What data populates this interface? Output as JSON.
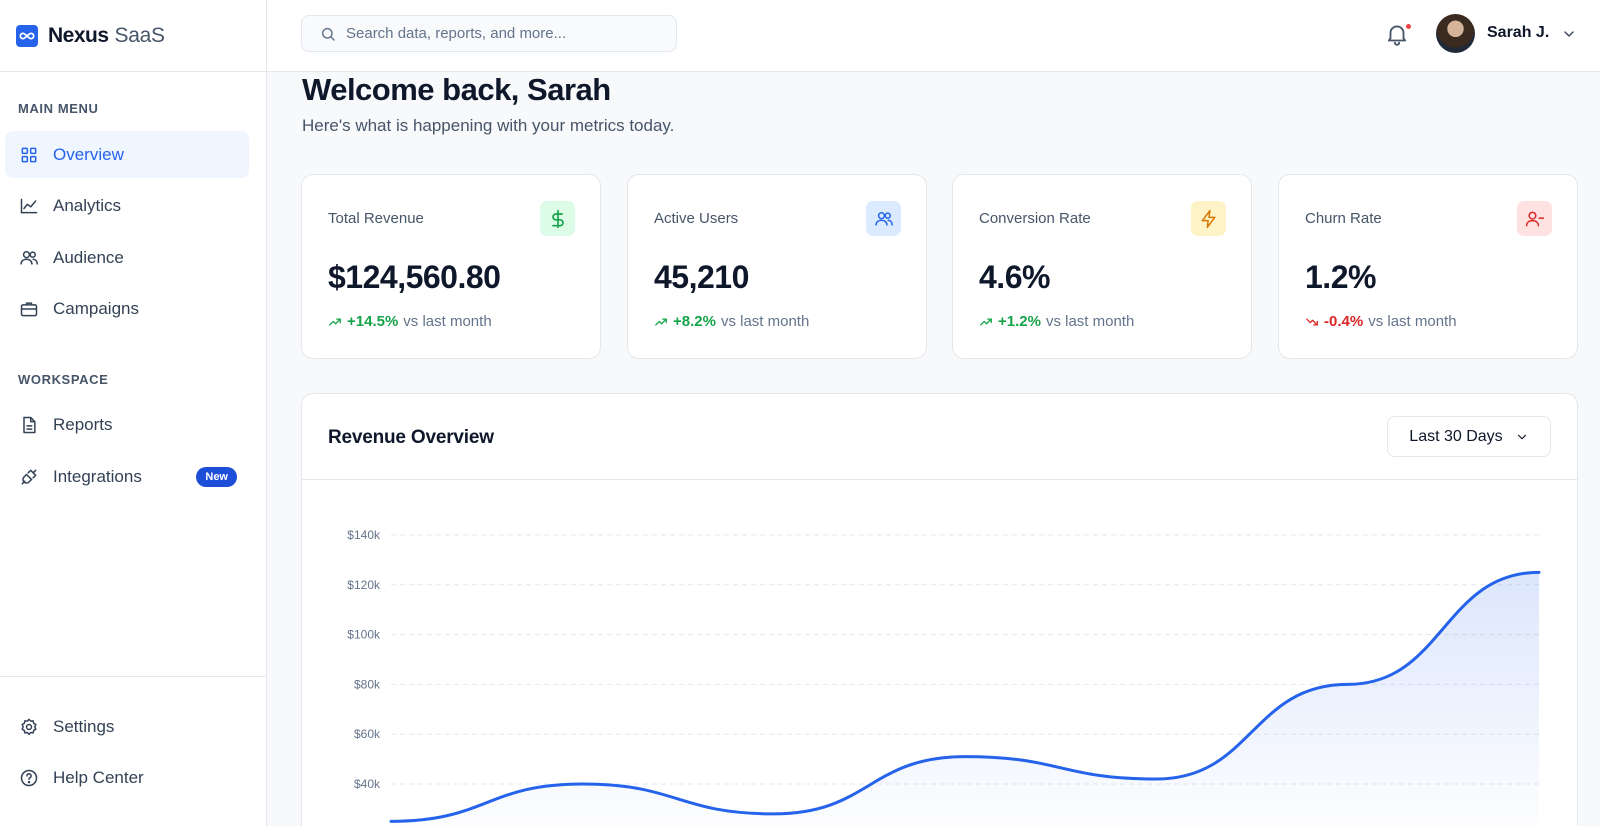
{
  "brand": {
    "name": "Nexus",
    "suffix": "SaaS"
  },
  "sidebar": {
    "main_label": "MAIN MENU",
    "main_items": [
      {
        "label": "Overview",
        "icon": "grid-icon",
        "active": true
      },
      {
        "label": "Analytics",
        "icon": "trend-chart-icon"
      },
      {
        "label": "Audience",
        "icon": "users-icon"
      },
      {
        "label": "Campaigns",
        "icon": "briefcase-icon"
      }
    ],
    "workspace_label": "WORKSPACE",
    "workspace_items": [
      {
        "label": "Reports",
        "icon": "document-icon"
      },
      {
        "label": "Integrations",
        "icon": "plug-icon",
        "badge": "New"
      }
    ],
    "bottom_items": [
      {
        "label": "Settings",
        "icon": "gear-icon"
      },
      {
        "label": "Help Center",
        "icon": "help-circle-icon"
      }
    ]
  },
  "header": {
    "search_placeholder": "Search data, reports, and more...",
    "user_name": "Sarah J.",
    "has_notification": true
  },
  "main": {
    "welcome": "Welcome back, Sarah",
    "subtitle": "Here's what is happening with your metrics today."
  },
  "stats": [
    {
      "label": "Total Revenue",
      "value": "$124,560.80",
      "change": "+14.5%",
      "direction": "up",
      "suffix": "vs last month",
      "icon": "dollar-icon",
      "icon_bg": "#dcfce7",
      "icon_color": "#16a34a"
    },
    {
      "label": "Active Users",
      "value": "45,210",
      "change": "+8.2%",
      "direction": "up",
      "suffix": "vs last month",
      "icon": "users-icon",
      "icon_bg": "#dbeafe",
      "icon_color": "#2563eb"
    },
    {
      "label": "Conversion Rate",
      "value": "4.6%",
      "change": "+1.2%",
      "direction": "up",
      "suffix": "vs last month",
      "icon": "lightning-icon",
      "icon_bg": "#fef3c7",
      "icon_color": "#d97706"
    },
    {
      "label": "Churn Rate",
      "value": "1.2%",
      "change": "-0.4%",
      "direction": "down",
      "suffix": "vs last month",
      "icon": "user-minus-icon",
      "icon_bg": "#fee2e2",
      "icon_color": "#dc2626"
    }
  ],
  "revenue_panel": {
    "title": "Revenue Overview",
    "range_label": "Last 30 Days"
  },
  "chart_data": {
    "type": "area",
    "title": "Revenue Overview",
    "xlabel": "",
    "ylabel": "",
    "y_tick_labels": [
      "$140k",
      "$120k",
      "$100k",
      "$80k",
      "$60k",
      "$40k"
    ],
    "y_ticks": [
      140000,
      120000,
      100000,
      80000,
      60000,
      40000
    ],
    "ylim": [
      20000,
      140000
    ],
    "x": [
      0,
      1,
      2,
      3,
      4,
      5,
      6
    ],
    "values": [
      25000,
      40000,
      28000,
      51000,
      42000,
      80000,
      125000
    ],
    "grid": true,
    "line_color": "#2563eb",
    "fill_color": "#2563eb"
  },
  "colors": {
    "accent": "#2563eb",
    "positive": "#16a34a",
    "negative": "#dc2626"
  }
}
